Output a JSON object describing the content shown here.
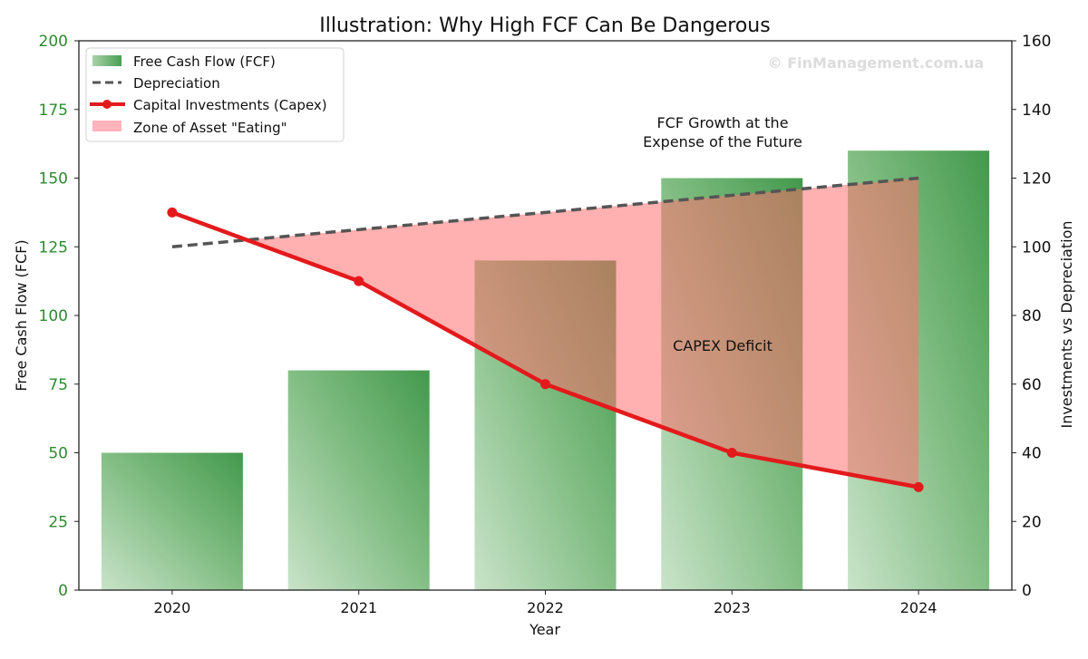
{
  "chart_data": {
    "type": "bar+line",
    "title": "Illustration: Why High FCF Can Be Dangerous",
    "xlabel": "Year",
    "ylabel_left": "Free Cash Flow (FCF)",
    "ylabel_right": "Investments vs Depreciation",
    "categories": [
      "2020",
      "2021",
      "2022",
      "2023",
      "2024"
    ],
    "ylim_left": [
      0,
      200
    ],
    "ylim_right": [
      0,
      160
    ],
    "yticks_left": [
      "0",
      "25",
      "50",
      "75",
      "100",
      "125",
      "150",
      "175",
      "200"
    ],
    "yticks_right": [
      "0",
      "20",
      "40",
      "60",
      "80",
      "100",
      "120",
      "140",
      "160"
    ],
    "grid": false,
    "legend_position": "top-left",
    "series": [
      {
        "name": "Free Cash Flow (FCF)",
        "type": "bar",
        "axis": "left",
        "values": [
          50,
          80,
          120,
          150,
          160
        ],
        "color": "#4a9e55"
      },
      {
        "name": "Depreciation",
        "type": "line",
        "style": "dashed",
        "axis": "right",
        "values": [
          100,
          105,
          110,
          115,
          120
        ],
        "color": "#555555"
      },
      {
        "name": "Capital Investments (Capex)",
        "type": "line",
        "markers": true,
        "axis": "right",
        "values": [
          110,
          90,
          60,
          40,
          30
        ],
        "color": "#e31a1c"
      },
      {
        "name": "Zone of Asset \"Eating\"",
        "type": "fill_between",
        "between": [
          "Depreciation",
          "Capital Investments (Capex)"
        ],
        "color": "#ff8a8a"
      }
    ],
    "annotations": [
      {
        "text": "FCF Growth at the\nExpense of the Future",
        "line1": "FCF Growth at the",
        "line2": "Expense of the Future"
      },
      {
        "text": "CAPEX Deficit"
      }
    ],
    "watermark": "© FinManagement.com.ua"
  }
}
